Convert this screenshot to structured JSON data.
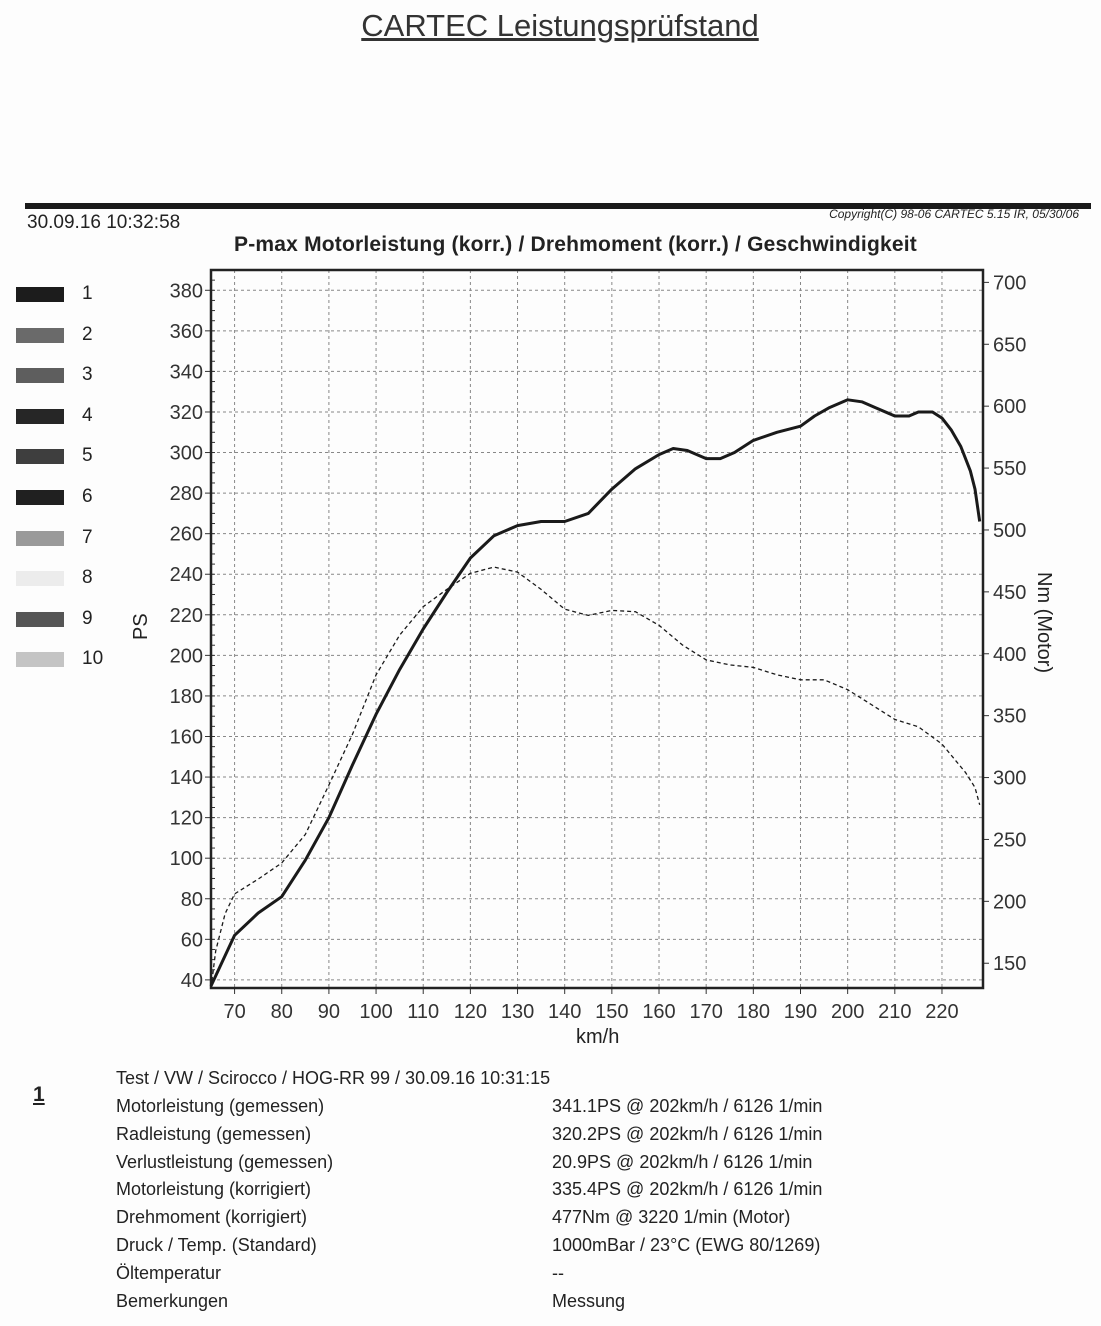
{
  "header": {
    "title": "CARTEC Leistungsprüfstand",
    "timestamp": "30.09.16 10:32:58",
    "copyright": "Copyright(C) 98-06 CARTEC 5.15 IR, 05/30/06"
  },
  "legend": [
    {
      "label": "1",
      "color": "#1c1c1c"
    },
    {
      "label": "2",
      "color": "#6a6a6a"
    },
    {
      "label": "3",
      "color": "#5e5e5e"
    },
    {
      "label": "4",
      "color": "#262626"
    },
    {
      "label": "5",
      "color": "#3e3e3e"
    },
    {
      "label": "6",
      "color": "#202020"
    },
    {
      "label": "7",
      "color": "#9a9a9a"
    },
    {
      "label": "8",
      "color": "#ececec"
    },
    {
      "label": "9",
      "color": "#555555"
    },
    {
      "label": "10",
      "color": "#c4c4c4"
    }
  ],
  "chart_data": {
    "type": "line",
    "title": "P-max Motorleistung (korr.) / Drehmoment (korr.) / Geschwindigkeit",
    "xlabel": "km/h",
    "ylabel": "PS",
    "y2label": "Nm (Motor)",
    "xlim": [
      65,
      228.7
    ],
    "ylim": [
      36,
      390
    ],
    "y2lim": [
      130,
      710
    ],
    "xticks": [
      70,
      80,
      90,
      100,
      110,
      120,
      130,
      140,
      150,
      160,
      170,
      180,
      190,
      200,
      210,
      220
    ],
    "yticks": [
      40,
      60,
      80,
      100,
      120,
      140,
      160,
      180,
      200,
      220,
      240,
      260,
      280,
      300,
      320,
      340,
      360,
      380
    ],
    "y2ticks": [
      150,
      200,
      250,
      300,
      350,
      400,
      450,
      500,
      550,
      600,
      650,
      700
    ],
    "grid": true,
    "series": [
      {
        "name": "Motorleistung (korr.)",
        "axis": "left",
        "style": "solid",
        "x": [
          65,
          67,
          70,
          75,
          80,
          85,
          90,
          95,
          100,
          105,
          110,
          115,
          120,
          125,
          130,
          135,
          140,
          145,
          150,
          155,
          160,
          163,
          166,
          170,
          173,
          176,
          180,
          185,
          190,
          193,
          196,
          200,
          203,
          206,
          210,
          213,
          215,
          218,
          220,
          222,
          224,
          226,
          227,
          228
        ],
        "y": [
          37,
          47,
          62,
          73,
          81,
          99,
          120,
          146,
          171,
          193,
          213,
          231,
          248,
          259,
          264,
          266,
          266,
          270,
          282,
          292,
          299,
          302,
          301,
          297,
          297,
          300,
          306,
          310,
          313,
          318,
          322,
          326,
          325,
          322,
          318,
          318,
          320,
          320,
          317,
          311,
          303,
          291,
          282,
          266
        ]
      },
      {
        "name": "Drehmoment (korr.)",
        "axis": "right",
        "style": "dashed",
        "x": [
          65,
          66,
          68,
          70,
          75,
          80,
          85,
          90,
          95,
          100,
          105,
          110,
          115,
          120,
          125,
          130,
          135,
          140,
          145,
          150,
          155,
          160,
          165,
          170,
          175,
          180,
          185,
          190,
          195,
          200,
          205,
          210,
          215,
          220,
          225,
          227,
          228
        ],
        "y": [
          130,
          160,
          190,
          206,
          218,
          231,
          254,
          294,
          335,
          383,
          415,
          438,
          452,
          465,
          470,
          466,
          452,
          436,
          431,
          435,
          434,
          423,
          407,
          395,
          391,
          389,
          383,
          379,
          379,
          371,
          359,
          347,
          341,
          327,
          304,
          292,
          278
        ]
      }
    ]
  },
  "run": {
    "number": "1",
    "header": "Test / VW / Scirocco / HOG-RR 99 / 30.09.16 10:31:15",
    "rows": [
      {
        "label": "Motorleistung (gemessen)",
        "value": "341.1PS @ 202km/h / 6126 1/min"
      },
      {
        "label": "Radleistung (gemessen)",
        "value": "320.2PS @ 202km/h / 6126 1/min"
      },
      {
        "label": "Verlustleistung (gemessen)",
        "value": "20.9PS @ 202km/h / 6126 1/min"
      },
      {
        "label": "Motorleistung (korrigiert)",
        "value": "335.4PS @ 202km/h / 6126 1/min"
      },
      {
        "label": "Drehmoment (korrigiert)",
        "value": "477Nm @ 3220 1/min (Motor)"
      },
      {
        "label": "Druck / Temp. (Standard)",
        "value": "1000mBar / 23°C   (EWG 80/1269)"
      },
      {
        "label": "Öltemperatur",
        "value": "--"
      },
      {
        "label": "Bemerkungen",
        "value": "Messung"
      }
    ]
  }
}
